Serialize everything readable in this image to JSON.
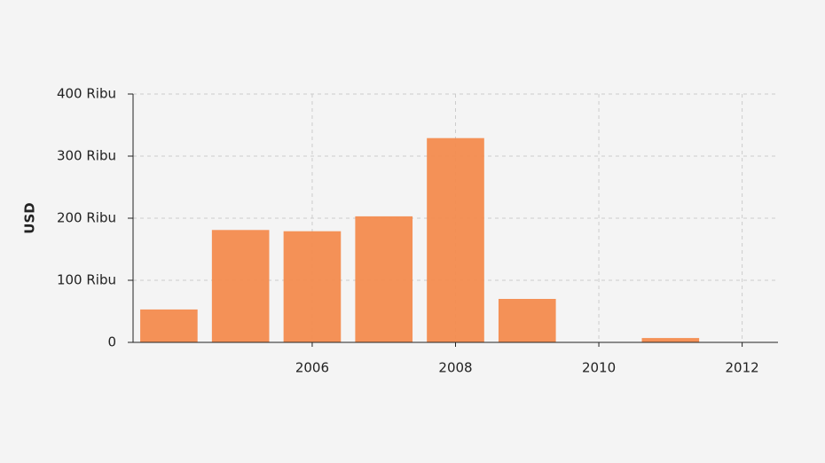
{
  "chart_data": {
    "type": "bar",
    "y_label": "USD",
    "x": [
      2004,
      2005,
      2006,
      2007,
      2008,
      2009,
      2010,
      2011,
      2012
    ],
    "values": [
      53000,
      181000,
      179000,
      203000,
      329000,
      70000,
      0,
      7000,
      0
    ],
    "color": "#f38b4e",
    "xlim": [
      2003.5,
      2012.5
    ],
    "xticks": [
      2006,
      2008,
      2010,
      2012
    ],
    "ylim": [
      0,
      400000
    ],
    "yticks": [
      0,
      {
        "value": 100000,
        "label": "100 Ribu"
      },
      {
        "value": 200000,
        "label": "200 Ribu"
      },
      {
        "value": 300000,
        "label": "300 Ribu"
      },
      {
        "value": 400000,
        "label": "400 Ribu"
      }
    ],
    "grid": true
  }
}
